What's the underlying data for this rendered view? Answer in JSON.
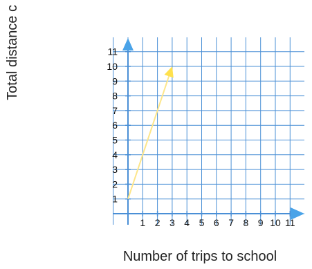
{
  "chart_data": {
    "type": "line",
    "title": "",
    "xlabel": "Number of trips to school",
    "ylabel": "Total distance c",
    "xlim": [
      0,
      11
    ],
    "ylim": [
      0,
      11
    ],
    "x_ticks": [
      "1",
      "2",
      "3",
      "4",
      "5",
      "6",
      "7",
      "8",
      "9",
      "10",
      "11"
    ],
    "y_ticks": [
      "1",
      "2",
      "3",
      "4",
      "5",
      "6",
      "7",
      "8",
      "9",
      "10",
      "11"
    ],
    "grid": true,
    "series": [
      {
        "x": [
          0,
          3
        ],
        "y": [
          1,
          10
        ]
      }
    ],
    "colors": {
      "grid": "#4a8fd6",
      "axis": "#4a8fd6",
      "arrowhead": "#4aa3e8",
      "line": "#fde68a",
      "line_arrowhead": "#ffe14d"
    }
  }
}
